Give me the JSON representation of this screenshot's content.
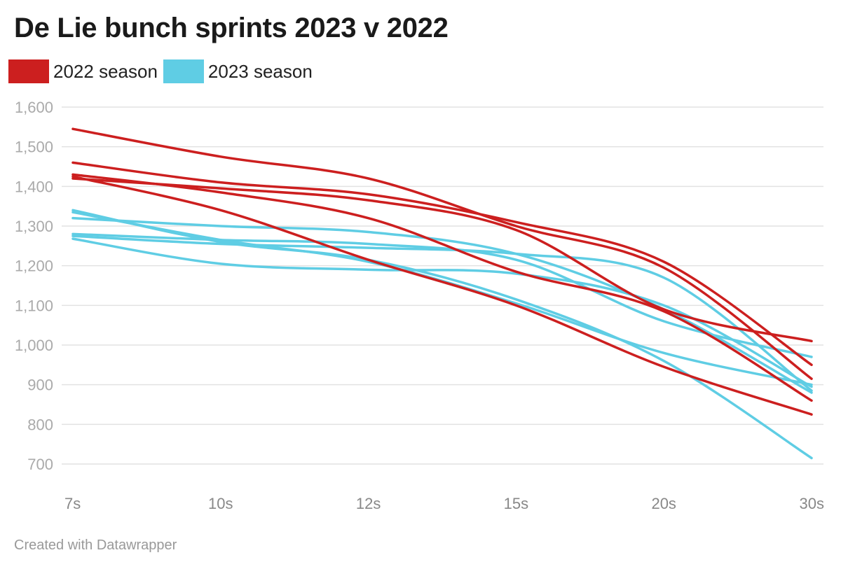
{
  "chart_data": {
    "type": "line",
    "title": "De Lie bunch sprints 2023 v 2022",
    "xlabel": "",
    "ylabel": "",
    "categories": [
      "7s",
      "10s",
      "12s",
      "15s",
      "20s",
      "30s"
    ],
    "ylim": [
      700,
      1600
    ],
    "yticks": [
      1600,
      1500,
      1400,
      1300,
      1200,
      1100,
      1000,
      900,
      800,
      700
    ],
    "ytick_labels": [
      "1,600",
      "1,500",
      "1,400",
      "1,300",
      "1,200",
      "1,100",
      "1,000",
      "900",
      "800",
      "700"
    ],
    "grid": true,
    "legend": [
      {
        "name": "2022 season",
        "color": "#cc1f1f"
      },
      {
        "name": "2023 season",
        "color": "#5fcde4"
      }
    ],
    "series": [
      {
        "name": "2023 season",
        "group": "2023",
        "color": "#5fcde4",
        "values": [
          1340,
          1260,
          1215,
          1115,
          960,
          715
        ]
      },
      {
        "name": "2023 season",
        "group": "2023",
        "color": "#5fcde4",
        "values": [
          1335,
          1265,
          1210,
          1105,
          980,
          900
        ]
      },
      {
        "name": "2023 season",
        "group": "2023",
        "color": "#5fcde4",
        "values": [
          1320,
          1300,
          1285,
          1230,
          1090,
          880
        ]
      },
      {
        "name": "2023 season",
        "group": "2023",
        "color": "#5fcde4",
        "values": [
          1280,
          1265,
          1255,
          1215,
          1060,
          970
        ]
      },
      {
        "name": "2023 season",
        "group": "2023",
        "color": "#5fcde4",
        "values": [
          1275,
          1255,
          1245,
          1230,
          1170,
          885
        ]
      },
      {
        "name": "2023 season",
        "group": "2023",
        "color": "#5fcde4",
        "values": [
          1268,
          1205,
          1190,
          1180,
          1100,
          895
        ]
      },
      {
        "name": "2022 season",
        "group": "2022",
        "color": "#cc1f1f",
        "values": [
          1545,
          1475,
          1420,
          1300,
          1195,
          915
        ]
      },
      {
        "name": "2022 season",
        "group": "2022",
        "color": "#cc1f1f",
        "values": [
          1460,
          1410,
          1380,
          1310,
          1210,
          950
        ]
      },
      {
        "name": "2022 season",
        "group": "2022",
        "color": "#cc1f1f",
        "values": [
          1420,
          1395,
          1365,
          1290,
          1090,
          1010
        ]
      },
      {
        "name": "2022 season",
        "group": "2022",
        "color": "#cc1f1f",
        "values": [
          1430,
          1385,
          1320,
          1185,
          1085,
          860
        ]
      },
      {
        "name": "2022 season",
        "group": "2022",
        "color": "#cc1f1f",
        "values": [
          1425,
          1340,
          1215,
          1100,
          945,
          825
        ]
      }
    ]
  },
  "footer": "Created with Datawrapper"
}
